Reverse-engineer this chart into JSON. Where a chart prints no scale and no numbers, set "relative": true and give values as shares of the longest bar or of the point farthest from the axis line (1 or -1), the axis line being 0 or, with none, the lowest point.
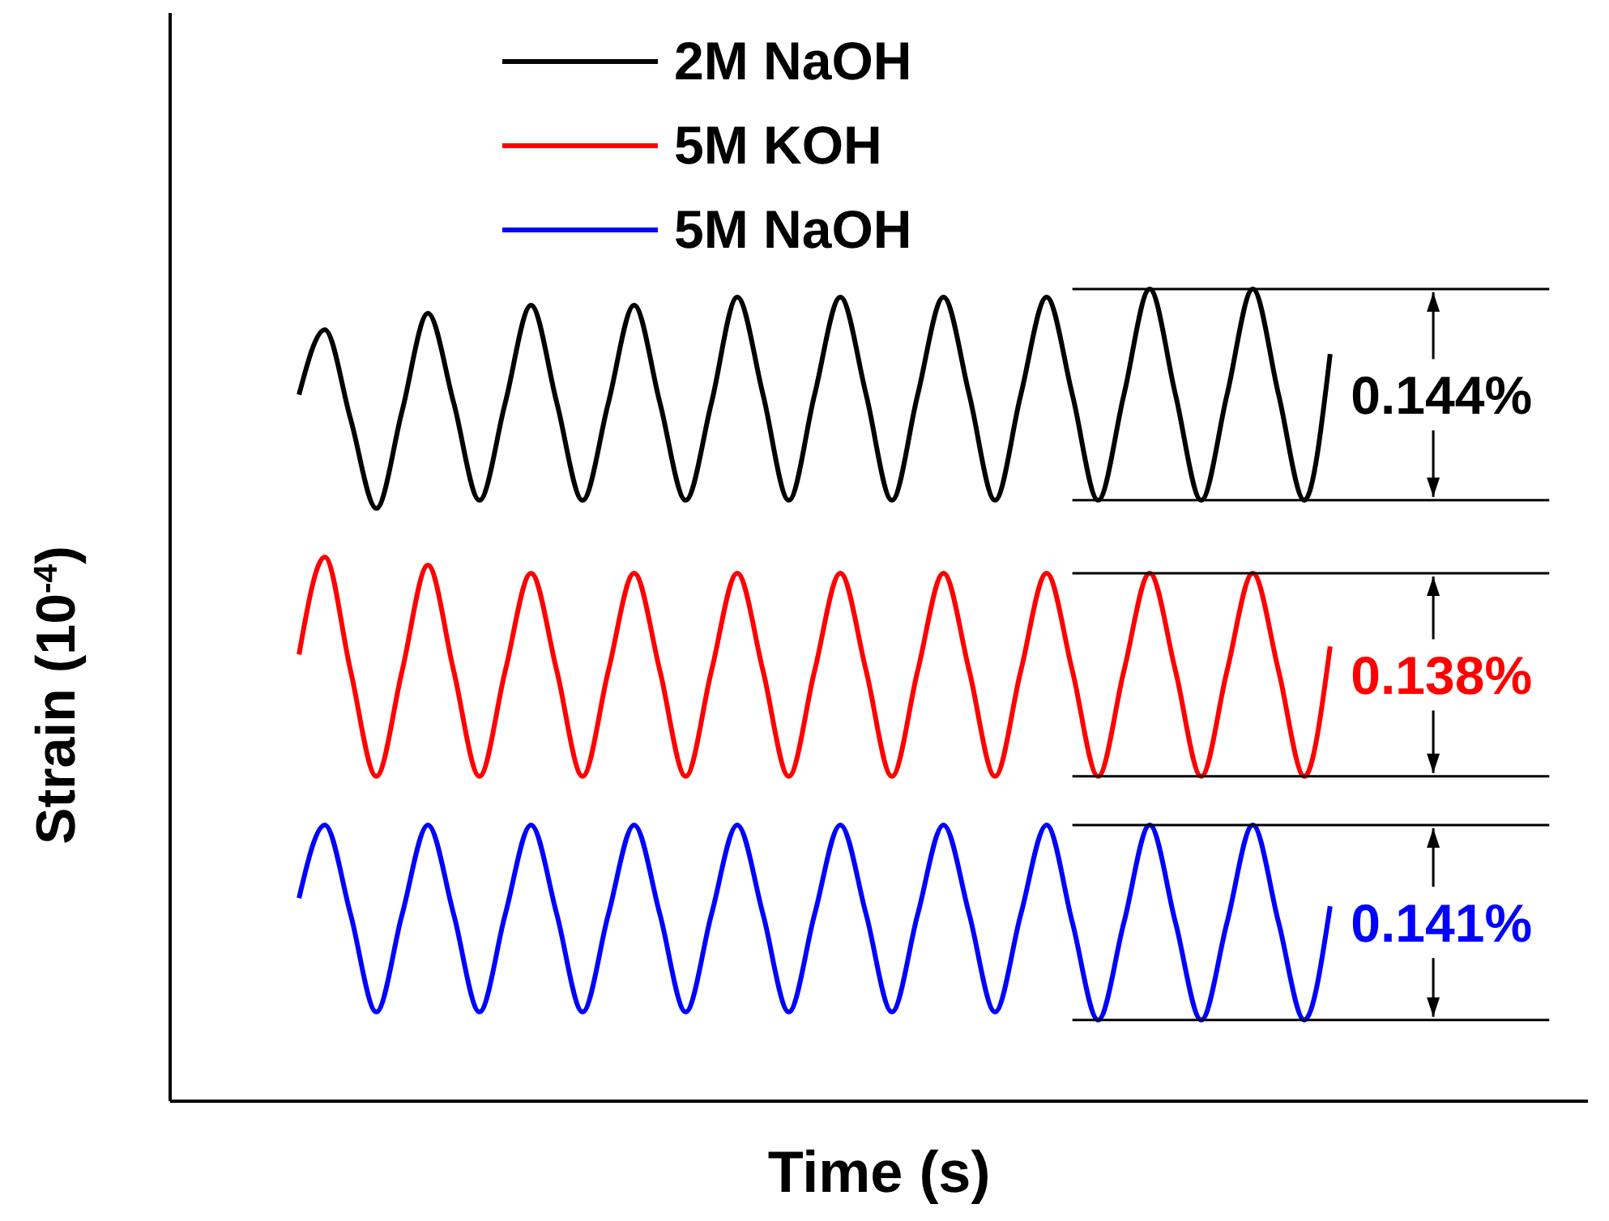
{
  "chart_data": {
    "type": "line",
    "relative": true,
    "xlabel": "Time (s)",
    "ylabel": "Strain (10$^{-4}$)",
    "legend": "top",
    "grid": false,
    "categories": [
      null,
      null,
      null,
      null,
      null,
      null,
      null,
      null,
      null,
      null,
      null,
      null,
      null,
      null,
      null,
      null,
      null,
      null,
      null,
      null,
      null,
      null,
      null,
      null,
      null,
      null,
      null,
      null,
      null,
      null,
      null,
      null,
      null,
      null,
      null,
      null,
      null,
      null,
      null,
      null,
      null
    ],
    "series": [
      {
        "name": "2M NaOH",
        "color": "#000000",
        "values": [
          0.87,
          0.95,
          0.84,
          0.73,
          0.85,
          0.97,
          0.86,
          0.74,
          0.86,
          0.98,
          0.86,
          0.74,
          0.86,
          0.98,
          0.86,
          0.74,
          0.86,
          0.99,
          0.87,
          0.74,
          0.87,
          0.99,
          0.87,
          0.74,
          0.87,
          0.99,
          0.87,
          0.74,
          0.87,
          0.99,
          0.87,
          0.74,
          0.87,
          1.0,
          0.87,
          0.74,
          0.87,
          1.0,
          0.87,
          0.74,
          0.92
        ]
      },
      {
        "name": "5M KOH",
        "color": "#ff0000",
        "values": [
          0.55,
          0.67,
          0.53,
          0.4,
          0.53,
          0.66,
          0.53,
          0.4,
          0.53,
          0.65,
          0.53,
          0.4,
          0.53,
          0.65,
          0.53,
          0.4,
          0.53,
          0.65,
          0.53,
          0.4,
          0.53,
          0.65,
          0.53,
          0.4,
          0.53,
          0.65,
          0.53,
          0.4,
          0.53,
          0.65,
          0.53,
          0.4,
          0.53,
          0.65,
          0.53,
          0.4,
          0.53,
          0.65,
          0.53,
          0.4,
          0.56
        ]
      },
      {
        "name": "5M NaOH",
        "color": "#0000ff",
        "values": [
          0.25,
          0.34,
          0.23,
          0.11,
          0.23,
          0.34,
          0.23,
          0.11,
          0.23,
          0.34,
          0.23,
          0.11,
          0.23,
          0.34,
          0.23,
          0.11,
          0.23,
          0.34,
          0.23,
          0.11,
          0.23,
          0.34,
          0.23,
          0.11,
          0.23,
          0.34,
          0.23,
          0.11,
          0.23,
          0.34,
          0.22,
          0.1,
          0.22,
          0.34,
          0.22,
          0.1,
          0.22,
          0.34,
          0.22,
          0.1,
          0.24
        ]
      }
    ],
    "ref_lines": [
      {
        "axis": "y",
        "value": 1.0
      },
      {
        "axis": "y",
        "value": 0.74
      },
      {
        "axis": "y",
        "value": 0.65
      },
      {
        "axis": "y",
        "value": 0.4
      },
      {
        "axis": "y",
        "value": 0.34
      },
      {
        "axis": "y",
        "value": 0.1
      }
    ],
    "annotations": [
      "0.144%",
      "0.138%",
      "0.141%"
    ]
  }
}
